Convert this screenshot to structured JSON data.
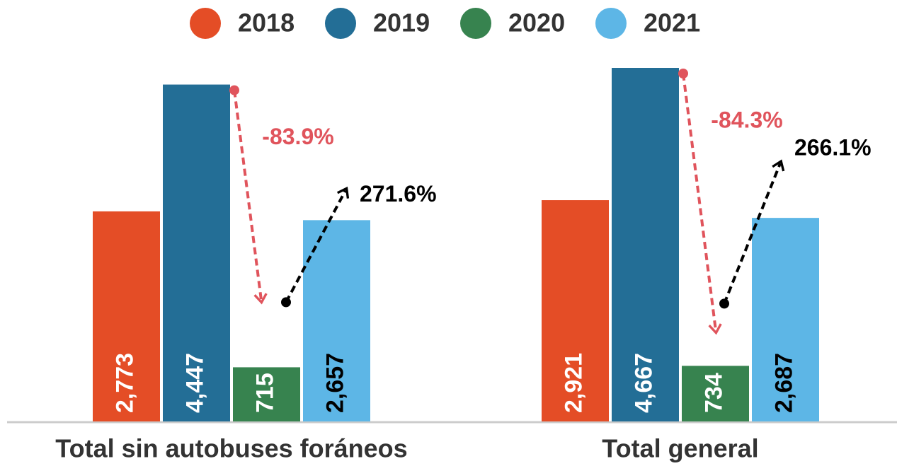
{
  "chart_data": {
    "type": "bar",
    "categories": [
      "Total sin autobuses foráneos",
      "Total general"
    ],
    "series": [
      {
        "name": "2018",
        "color": "#e44d26",
        "values": [
          2773,
          2921
        ],
        "value_labels": [
          "2,773",
          "2,921"
        ]
      },
      {
        "name": "2019",
        "color": "#236e96",
        "values": [
          4447,
          4667
        ],
        "value_labels": [
          "4,447",
          "4,667"
        ]
      },
      {
        "name": "2020",
        "color": "#37834f",
        "values": [
          715,
          734
        ],
        "value_labels": [
          "715",
          "734"
        ]
      },
      {
        "name": "2021",
        "color": "#5db6e6",
        "values": [
          2657,
          2687
        ],
        "value_labels": [
          "2,657",
          "2,687"
        ]
      }
    ],
    "annotations": [
      {
        "drop": "-83.9%",
        "rise": "271.6%"
      },
      {
        "drop": "-84.3%",
        "rise": "266.1%"
      }
    ]
  }
}
